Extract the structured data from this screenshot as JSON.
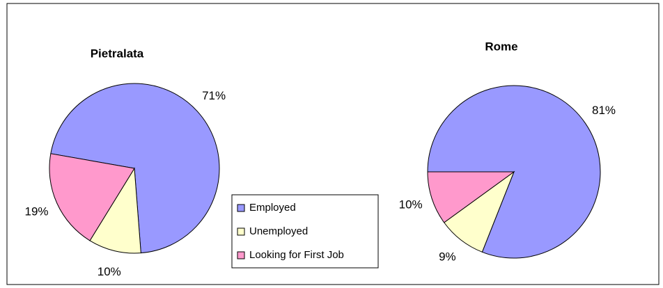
{
  "chart_data": [
    {
      "type": "pie",
      "title": "Pietralata",
      "categories": [
        "Employed",
        "Unemployed",
        "Looking for First Job"
      ],
      "values": [
        71,
        10,
        19
      ],
      "value_labels": [
        "71%",
        "10%",
        "19%"
      ],
      "colors": [
        "#9999ff",
        "#ffffcc",
        "#ff99cc"
      ],
      "start_angle": 280
    },
    {
      "type": "pie",
      "title": "Rome",
      "categories": [
        "Employed",
        "Unemployed",
        "Looking for First Job"
      ],
      "values": [
        81,
        9,
        10
      ],
      "value_labels": [
        "81%",
        "9%",
        "10%"
      ],
      "colors": [
        "#9999ff",
        "#ffffcc",
        "#ff99cc"
      ],
      "start_angle": 270
    }
  ]
}
